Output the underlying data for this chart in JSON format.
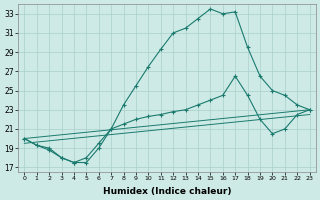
{
  "xlabel": "Humidex (Indice chaleur)",
  "ylabel": "",
  "bg_color": "#ceeae6",
  "grid_color": "#aacfcc",
  "line_color": "#1a7a6e",
  "xlim": [
    -0.5,
    23.5
  ],
  "ylim": [
    16.5,
    34.0
  ],
  "xticks": [
    0,
    1,
    2,
    3,
    4,
    5,
    6,
    7,
    8,
    9,
    10,
    11,
    12,
    13,
    14,
    15,
    16,
    17,
    18,
    19,
    20,
    21,
    22,
    23
  ],
  "yticks": [
    17,
    19,
    21,
    23,
    25,
    27,
    29,
    31,
    33
  ],
  "series": [
    {
      "x": [
        0,
        1,
        2,
        3,
        4,
        5,
        6,
        7,
        8,
        9,
        10,
        11,
        12,
        13,
        14,
        15,
        16,
        17,
        18,
        19,
        20,
        21,
        22,
        23
      ],
      "y": [
        20.0,
        19.3,
        19.0,
        18.0,
        17.5,
        17.5,
        19.0,
        21.0,
        23.5,
        25.5,
        27.5,
        29.3,
        31.0,
        31.5,
        32.5,
        33.5,
        33.0,
        33.2,
        29.5,
        26.5,
        25.0,
        24.5,
        23.5,
        23.0
      ],
      "marker": "+"
    },
    {
      "x": [
        0,
        23
      ],
      "y": [
        20.0,
        23.0
      ],
      "marker": null
    },
    {
      "x": [
        0,
        23
      ],
      "y": [
        19.5,
        22.5
      ],
      "marker": null
    },
    {
      "x": [
        0,
        1,
        2,
        3,
        4,
        5,
        6,
        7,
        8,
        9,
        10,
        11,
        12,
        13,
        14,
        15,
        16,
        17,
        18,
        19,
        20,
        21,
        22,
        23
      ],
      "y": [
        20.0,
        19.3,
        18.8,
        18.0,
        17.5,
        18.0,
        19.5,
        21.0,
        21.5,
        22.0,
        22.3,
        22.5,
        22.8,
        23.0,
        23.5,
        24.0,
        24.5,
        26.5,
        24.5,
        22.0,
        20.5,
        21.0,
        22.5,
        23.0
      ],
      "marker": "+"
    }
  ]
}
